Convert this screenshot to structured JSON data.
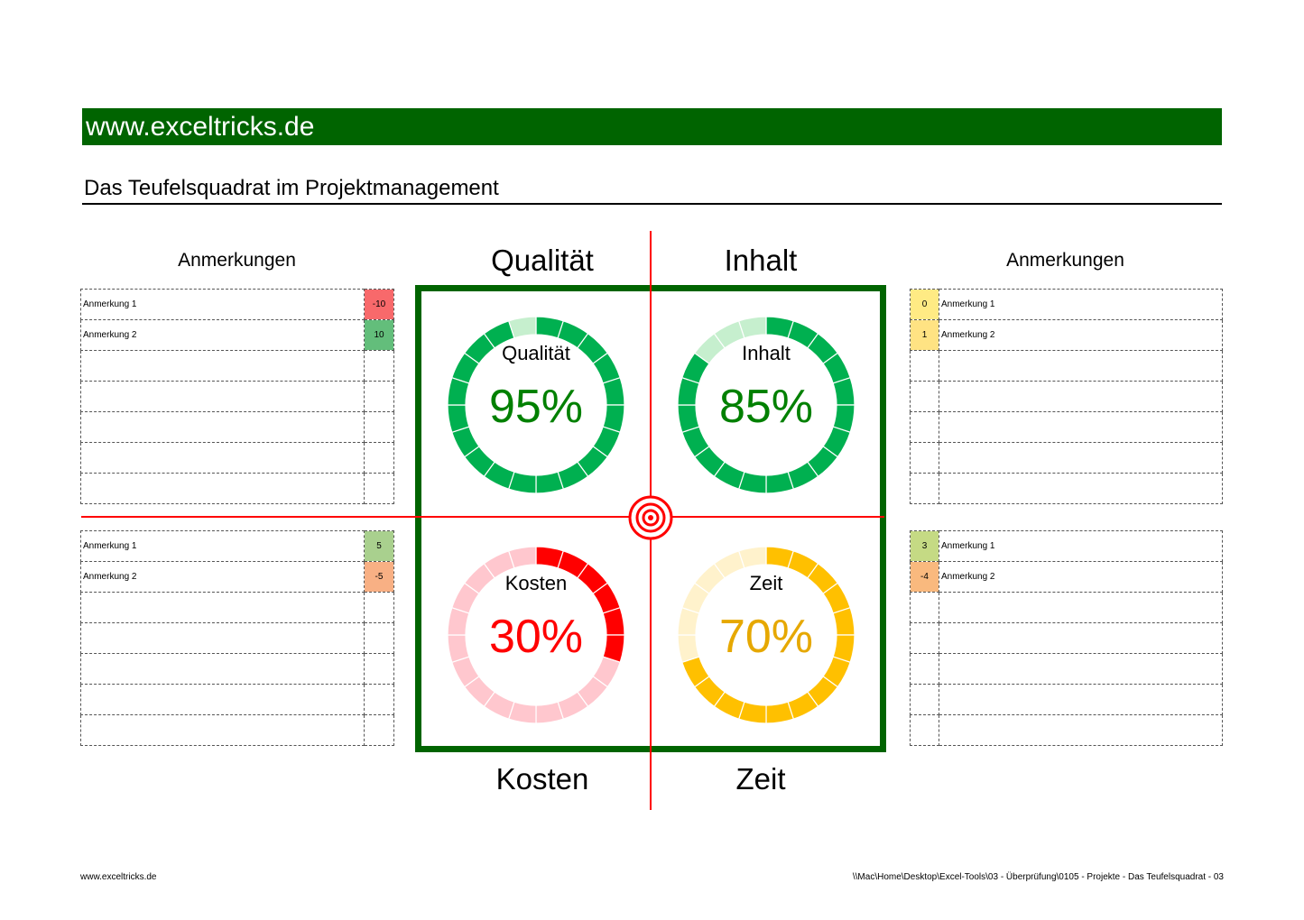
{
  "banner": "www.exceltricks.de",
  "title": "Das Teufelsquadrat im Projektmanagement",
  "left_header": "Anmerkungen",
  "right_header": "Anmerkungen",
  "quadrants": {
    "top_left_label": "Qualität",
    "top_right_label": "Inhalt",
    "bottom_left_label": "Kosten",
    "bottom_right_label": "Zeit"
  },
  "gauges": [
    {
      "id": "qualitaet",
      "label": "Qualität",
      "value_text": "95%",
      "value": 0.95,
      "fill": "#00b050",
      "track": "#c6efce",
      "text_color": "#008000"
    },
    {
      "id": "inhalt",
      "label": "Inhalt",
      "value_text": "85%",
      "value": 0.85,
      "fill": "#00b050",
      "track": "#c6efce",
      "text_color": "#008000"
    },
    {
      "id": "kosten",
      "label": "Kosten",
      "value_text": "30%",
      "value": 0.3,
      "fill": "#ff0000",
      "track": "#ffc7ce",
      "text_color": "#ff0000"
    },
    {
      "id": "zeit",
      "label": "Zeit",
      "value_text": "70%",
      "value": 0.7,
      "fill": "#ffc000",
      "track": "#fff2cc",
      "text_color": "#e6a800"
    }
  ],
  "notes": {
    "top_left": [
      {
        "text": "Anmerkung 1",
        "value": "-10",
        "color": "#f8696b"
      },
      {
        "text": "Anmerkung 2",
        "value": "10",
        "color": "#63be7b"
      },
      {
        "text": "",
        "value": "",
        "color": ""
      },
      {
        "text": "",
        "value": "",
        "color": ""
      },
      {
        "text": "",
        "value": "",
        "color": ""
      },
      {
        "text": "",
        "value": "",
        "color": ""
      },
      {
        "text": "",
        "value": "",
        "color": ""
      }
    ],
    "bottom_left": [
      {
        "text": "Anmerkung 1",
        "value": "5",
        "color": "#a9d08e"
      },
      {
        "text": "Anmerkung 2",
        "value": "-5",
        "color": "#f8b084"
      },
      {
        "text": "",
        "value": "",
        "color": ""
      },
      {
        "text": "",
        "value": "",
        "color": ""
      },
      {
        "text": "",
        "value": "",
        "color": ""
      },
      {
        "text": "",
        "value": "",
        "color": ""
      },
      {
        "text": "",
        "value": "",
        "color": ""
      }
    ],
    "top_right": [
      {
        "text": "Anmerkung 1",
        "value": "0",
        "color": "#ffeb84"
      },
      {
        "text": "Anmerkung 2",
        "value": "1",
        "color": "#ffe383"
      },
      {
        "text": "",
        "value": "",
        "color": ""
      },
      {
        "text": "",
        "value": "",
        "color": ""
      },
      {
        "text": "",
        "value": "",
        "color": ""
      },
      {
        "text": "",
        "value": "",
        "color": ""
      },
      {
        "text": "",
        "value": "",
        "color": ""
      }
    ],
    "bottom_right": [
      {
        "text": "Anmerkung 1",
        "value": "3",
        "color": "#c5da84"
      },
      {
        "text": "Anmerkung 2",
        "value": "-4",
        "color": "#f9b97e"
      },
      {
        "text": "",
        "value": "",
        "color": ""
      },
      {
        "text": "",
        "value": "",
        "color": ""
      },
      {
        "text": "",
        "value": "",
        "color": ""
      },
      {
        "text": "",
        "value": "",
        "color": ""
      },
      {
        "text": "",
        "value": "",
        "color": ""
      }
    ]
  },
  "footer": {
    "left": "www.exceltricks.de",
    "right": "\\\\Mac\\Home\\Desktop\\Excel-Tools\\03 - Überprüfung\\0105 - Projekte - Das Teufelsquadrat - 03"
  },
  "colors": {
    "banner_green": "#006400",
    "cross_red": "#ff0000"
  }
}
